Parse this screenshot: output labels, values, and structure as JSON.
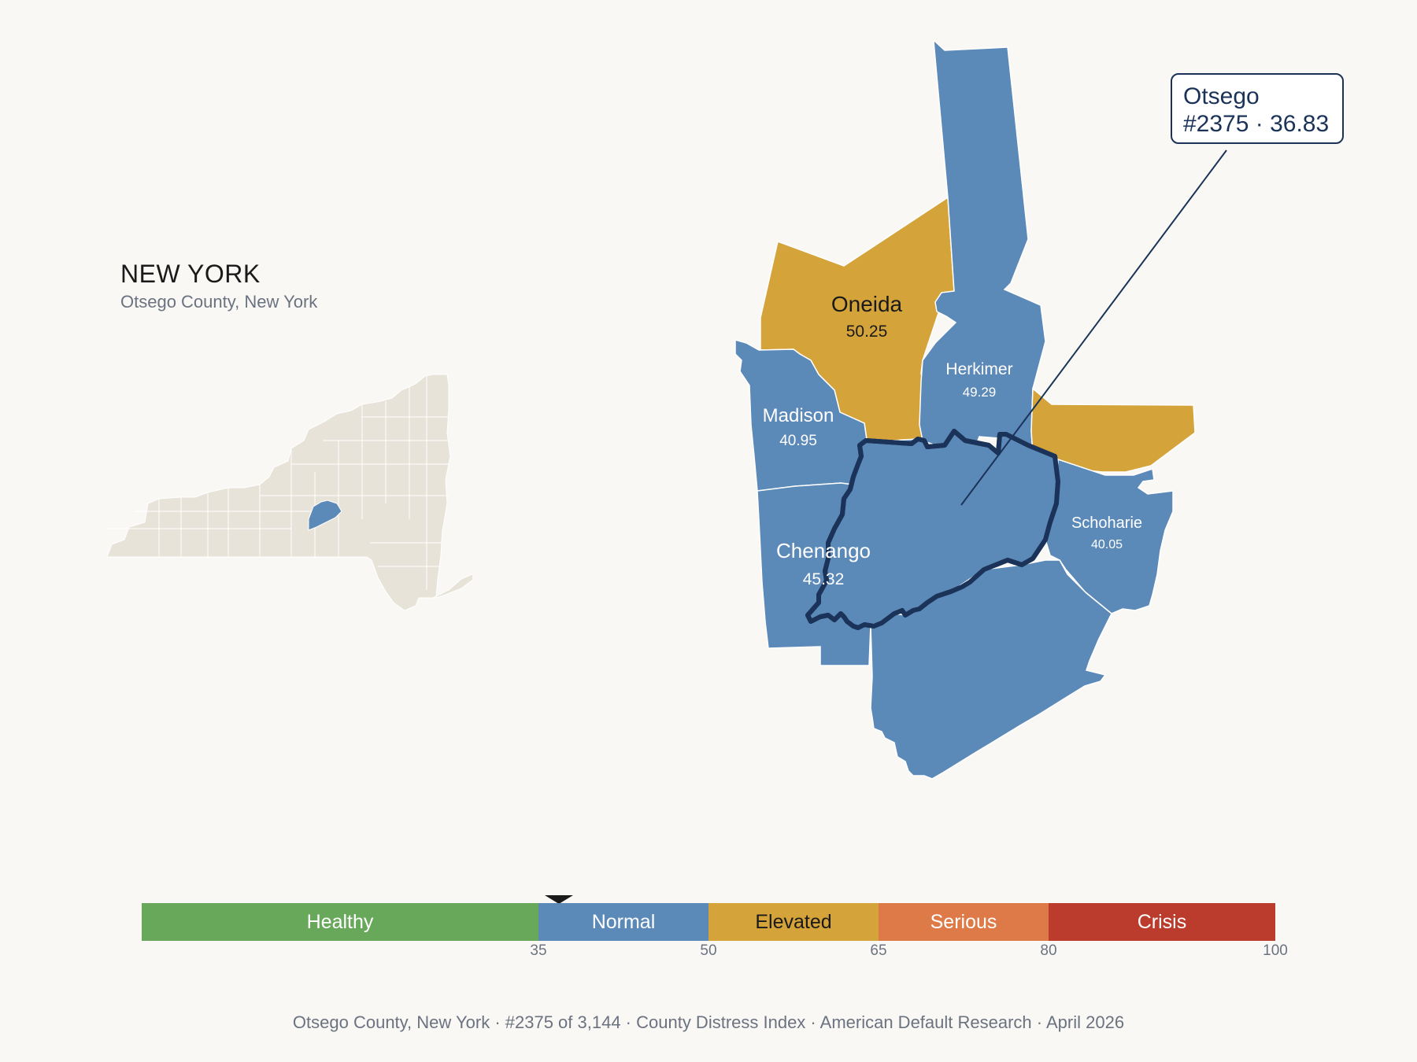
{
  "header": {
    "state": "NEW YORK",
    "subtitle": "Otsego County, New York"
  },
  "callout": {
    "name": "Otsego",
    "detail": "#2375 · 36.83"
  },
  "counties": [
    {
      "name": "Oneida",
      "value": "50.25",
      "category": "Elevated"
    },
    {
      "name": "Herkimer",
      "value": "49.29",
      "category": "Normal"
    },
    {
      "name": "Madison",
      "value": "40.95",
      "category": "Normal"
    },
    {
      "name": "Chenango",
      "value": "45.32",
      "category": "Normal"
    },
    {
      "name": "Schoharie",
      "value": "40.05",
      "category": "Normal"
    },
    {
      "name": "Otsego",
      "value": "36.83",
      "category": "Normal",
      "highlighted": true
    }
  ],
  "scale": {
    "segments": [
      {
        "label": "Healthy",
        "from": 0,
        "to": 35,
        "color": "#68a85a"
      },
      {
        "label": "Normal",
        "from": 35,
        "to": 50,
        "color": "#5b89b8"
      },
      {
        "label": "Elevated",
        "from": 50,
        "to": 65,
        "color": "#d4a33a"
      },
      {
        "label": "Serious",
        "from": 65,
        "to": 80,
        "color": "#dd7a48"
      },
      {
        "label": "Crisis",
        "from": 80,
        "to": 100,
        "color": "#bb3c2c"
      }
    ],
    "ticks": [
      "35",
      "50",
      "65",
      "80",
      "100"
    ],
    "marker_value": 36.83
  },
  "colors": {
    "normal": "#5b89b8",
    "elevated": "#d4a33a",
    "outline": "#1b3358",
    "inset_fill": "#e8e3d8"
  },
  "footer": "Otsego County, New York  ·  #2375 of 3,144  ·  County Distress Index  ·  American Default Research  ·  April 2026"
}
